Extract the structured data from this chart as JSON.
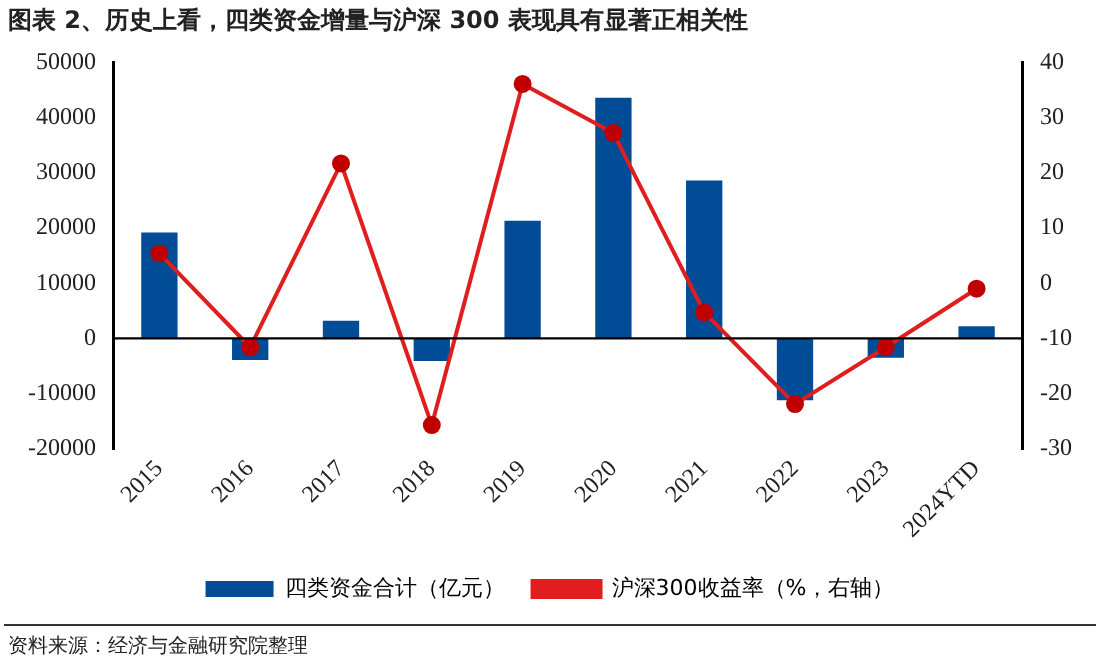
{
  "chart_data": {
    "type": "bar",
    "title": "图表 2、历史上看，四类资金增量与沪深 300 表现具有显著正相关性",
    "categories": [
      "2015",
      "2016",
      "2017",
      "2018",
      "2019",
      "2020",
      "2021",
      "2022",
      "2023",
      "2024YTD"
    ],
    "series": [
      {
        "name": "四类资金合计（亿元）",
        "color": "#004c97",
        "values": [
          19200,
          -3900,
          3200,
          -4100,
          21300,
          43600,
          28600,
          -11200,
          -3500,
          2200
        ]
      },
      {
        "name": "沪深300收益率（%，右轴）",
        "type": "line",
        "axis": "y2",
        "color": "#e01e1e",
        "values": [
          5.4,
          -11.6,
          21.7,
          -25.7,
          36.1,
          27.2,
          -5.3,
          -21.9,
          -11.6,
          -1.0
        ]
      }
    ],
    "ylim": [
      -20000,
      50000
    ],
    "yticks": [
      -20000,
      -10000,
      0,
      10000,
      20000,
      30000,
      40000,
      50000
    ],
    "y2lim": [
      -30,
      40
    ],
    "y2ticks": [
      -30,
      -20,
      -10,
      0,
      10,
      20,
      30,
      40
    ],
    "ref_lines": [
      {
        "axis": "y",
        "value": 0,
        "color": "#000000"
      }
    ],
    "grid": false,
    "legend": "bottom",
    "marker": "circle",
    "line_style": "solid",
    "annotations": [
      "资料来源：经济与金融研究院整理"
    ]
  }
}
